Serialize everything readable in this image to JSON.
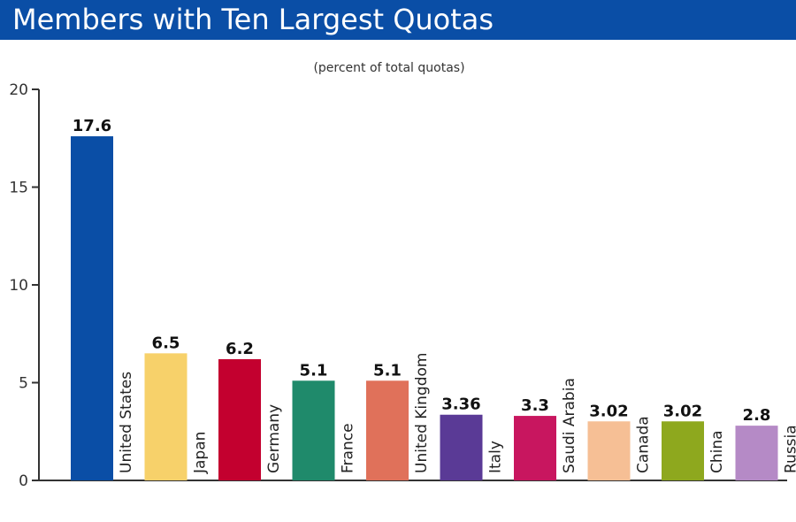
{
  "header": {
    "title": "Members with Ten Largest Quotas",
    "color": "#0a4ea6"
  },
  "chart_data": {
    "type": "bar",
    "title": "Members with Ten Largest Quotas",
    "subtitle": "(percent of total quotas)",
    "categories": [
      "United States",
      "Japan",
      "Germany",
      "France",
      "United Kingdom",
      "Italy",
      "Saudi Arabia",
      "Canada",
      "China",
      "Russia"
    ],
    "values": [
      17.6,
      6.5,
      6.2,
      5.1,
      5.1,
      3.36,
      3.3,
      3.02,
      3.02,
      2.8
    ],
    "value_labels": [
      "17.6",
      "6.5",
      "6.2",
      "5.1",
      "5.1",
      "3.36",
      "3.3",
      "3.02",
      "3.02",
      "2.8"
    ],
    "colors": [
      "#0a4ea6",
      "#f7d16a",
      "#c3002f",
      "#1f8a6b",
      "#e0715a",
      "#5a3a96",
      "#c8165f",
      "#f6bf95",
      "#8ea81e",
      "#b58ac6"
    ],
    "ylim": [
      0,
      20
    ],
    "yticks": [
      0,
      5,
      10,
      15,
      20
    ],
    "ytick_labels": [
      "0",
      "5",
      "10",
      "15",
      "20"
    ],
    "xlabel": "",
    "ylabel": "",
    "grid": false,
    "legend": "none"
  }
}
